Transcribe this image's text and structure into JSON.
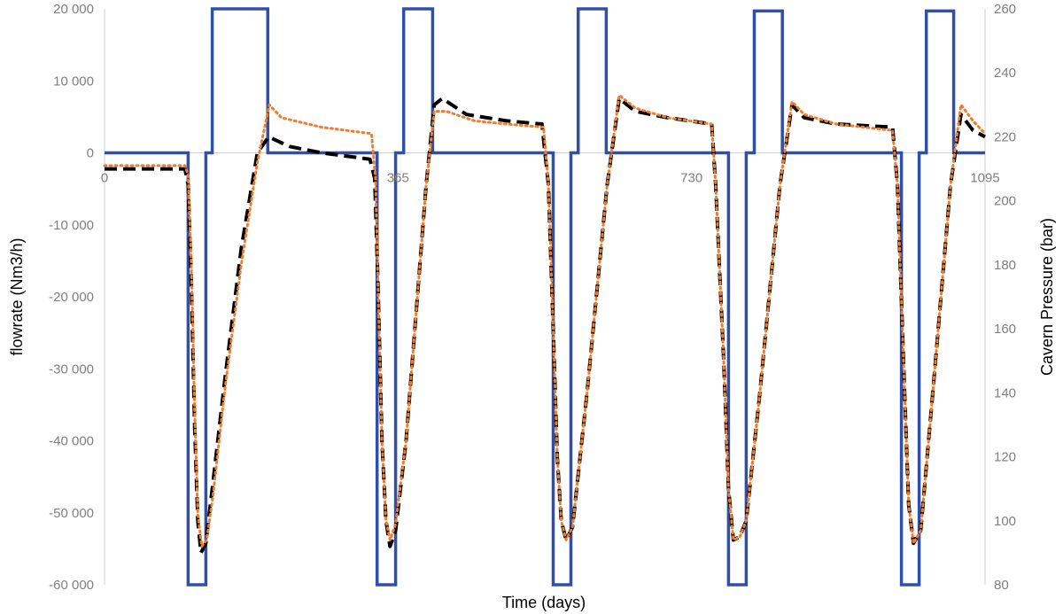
{
  "chart_data": {
    "type": "line",
    "xlabel": "Time (days)",
    "ylabel_left": "flowrate (Nm3/h)",
    "ylabel_right": "Cavern Pressure (bar)",
    "xlim": [
      0,
      1095
    ],
    "ylim_left": [
      -60000,
      20000
    ],
    "ylim_right": [
      80,
      260
    ],
    "x_ticks": [
      0,
      365,
      730,
      1095
    ],
    "x_tick_labels": [
      "0",
      "365",
      "730",
      "1095"
    ],
    "y_left_ticks": [
      20000,
      10000,
      0,
      -10000,
      -20000,
      -30000,
      -40000,
      -50000,
      -60000
    ],
    "y_left_tick_labels": [
      "20 000",
      "10 000",
      "0",
      "-10 000",
      "-20 000",
      "-30 000",
      "-40 000",
      "-50 000",
      "-60 000"
    ],
    "y_right_ticks": [
      260,
      240,
      220,
      200,
      180,
      160,
      140,
      120,
      100,
      80
    ],
    "y_right_tick_labels": [
      "260",
      "240",
      "220",
      "200",
      "180",
      "160",
      "140",
      "120",
      "100",
      "80"
    ],
    "grid": false,
    "legend": "none",
    "series": [
      {
        "axis": "left",
        "style": "solid",
        "color": "#2f4fa8",
        "points": [
          [
            0,
            0
          ],
          [
            104,
            0
          ],
          [
            104,
            -60000
          ],
          [
            126,
            -60000
          ],
          [
            126,
            0
          ],
          [
            134,
            0
          ],
          [
            134,
            20000
          ],
          [
            203,
            20000
          ],
          [
            203,
            0
          ],
          [
            339,
            0
          ],
          [
            339,
            -60000
          ],
          [
            362,
            -60000
          ],
          [
            362,
            0
          ],
          [
            372,
            0
          ],
          [
            372,
            20000
          ],
          [
            408,
            20000
          ],
          [
            408,
            0
          ],
          [
            558,
            0
          ],
          [
            558,
            -60000
          ],
          [
            580,
            -60000
          ],
          [
            580,
            0
          ],
          [
            589,
            0
          ],
          [
            589,
            20000
          ],
          [
            624,
            20000
          ],
          [
            624,
            0
          ],
          [
            776,
            0
          ],
          [
            776,
            -60000
          ],
          [
            798,
            -60000
          ],
          [
            798,
            0
          ],
          [
            808,
            0
          ],
          [
            808,
            19700
          ],
          [
            843,
            19700
          ],
          [
            843,
            0
          ],
          [
            991,
            0
          ],
          [
            991,
            -60000
          ],
          [
            1013,
            -60000
          ],
          [
            1013,
            0
          ],
          [
            1022,
            0
          ],
          [
            1022,
            19700
          ],
          [
            1056,
            19700
          ],
          [
            1056,
            0
          ],
          [
            1095,
            0
          ]
        ]
      },
      {
        "axis": "right",
        "style": "dashed",
        "color": "#000000",
        "points": [
          [
            0,
            210
          ],
          [
            100,
            210
          ],
          [
            104,
            205
          ],
          [
            108,
            175
          ],
          [
            112,
            130
          ],
          [
            116,
            100
          ],
          [
            120,
            90
          ],
          [
            126,
            93
          ],
          [
            134,
            110
          ],
          [
            150,
            145
          ],
          [
            170,
            185
          ],
          [
            190,
            215
          ],
          [
            204,
            220
          ],
          [
            230,
            217
          ],
          [
            270,
            215
          ],
          [
            330,
            213
          ],
          [
            336,
            207
          ],
          [
            340,
            175
          ],
          [
            345,
            125
          ],
          [
            350,
            100
          ],
          [
            355,
            92
          ],
          [
            362,
            97
          ],
          [
            375,
            125
          ],
          [
            400,
            205
          ],
          [
            410,
            230
          ],
          [
            420,
            232
          ],
          [
            450,
            227
          ],
          [
            500,
            225
          ],
          [
            544,
            224
          ],
          [
            552,
            205
          ],
          [
            558,
            160
          ],
          [
            563,
            120
          ],
          [
            568,
            100
          ],
          [
            574,
            94
          ],
          [
            582,
            98
          ],
          [
            600,
            140
          ],
          [
            625,
            205
          ],
          [
            640,
            232
          ],
          [
            660,
            228
          ],
          [
            700,
            226
          ],
          [
            755,
            224
          ],
          [
            760,
            205
          ],
          [
            770,
            150
          ],
          [
            776,
            110
          ],
          [
            782,
            94
          ],
          [
            790,
            95
          ],
          [
            798,
            100
          ],
          [
            815,
            140
          ],
          [
            840,
            205
          ],
          [
            855,
            230
          ],
          [
            870,
            226
          ],
          [
            910,
            224
          ],
          [
            980,
            223
          ],
          [
            986,
            205
          ],
          [
            995,
            140
          ],
          [
            1000,
            105
          ],
          [
            1006,
            93
          ],
          [
            1015,
            97
          ],
          [
            1030,
            140
          ],
          [
            1052,
            205
          ],
          [
            1065,
            227
          ],
          [
            1080,
            222
          ],
          [
            1095,
            220
          ]
        ]
      },
      {
        "axis": "right",
        "style": "dotted",
        "color": "#ed7d31",
        "points": [
          [
            0,
            211
          ],
          [
            100,
            211
          ],
          [
            104,
            208
          ],
          [
            108,
            180
          ],
          [
            112,
            135
          ],
          [
            116,
            102
          ],
          [
            121,
            92
          ],
          [
            127,
            94
          ],
          [
            135,
            108
          ],
          [
            150,
            142
          ],
          [
            170,
            180
          ],
          [
            190,
            212
          ],
          [
            205,
            230
          ],
          [
            220,
            226
          ],
          [
            270,
            223
          ],
          [
            332,
            221
          ],
          [
            337,
            207
          ],
          [
            340,
            175
          ],
          [
            345,
            125
          ],
          [
            350,
            100
          ],
          [
            355,
            94
          ],
          [
            362,
            99
          ],
          [
            375,
            125
          ],
          [
            400,
            205
          ],
          [
            410,
            228
          ],
          [
            425,
            228
          ],
          [
            460,
            225
          ],
          [
            500,
            224
          ],
          [
            546,
            223
          ],
          [
            552,
            205
          ],
          [
            558,
            160
          ],
          [
            563,
            120
          ],
          [
            568,
            100
          ],
          [
            574,
            94
          ],
          [
            582,
            98
          ],
          [
            600,
            140
          ],
          [
            625,
            205
          ],
          [
            640,
            233
          ],
          [
            660,
            229
          ],
          [
            700,
            226
          ],
          [
            755,
            224
          ],
          [
            760,
            205
          ],
          [
            770,
            150
          ],
          [
            776,
            110
          ],
          [
            782,
            94
          ],
          [
            790,
            95
          ],
          [
            798,
            100
          ],
          [
            815,
            140
          ],
          [
            840,
            205
          ],
          [
            855,
            231
          ],
          [
            870,
            227
          ],
          [
            910,
            224
          ],
          [
            980,
            222
          ],
          [
            986,
            205
          ],
          [
            995,
            140
          ],
          [
            1000,
            105
          ],
          [
            1006,
            93
          ],
          [
            1015,
            97
          ],
          [
            1030,
            140
          ],
          [
            1052,
            205
          ],
          [
            1065,
            230
          ],
          [
            1080,
            225
          ],
          [
            1095,
            221
          ]
        ]
      }
    ]
  }
}
